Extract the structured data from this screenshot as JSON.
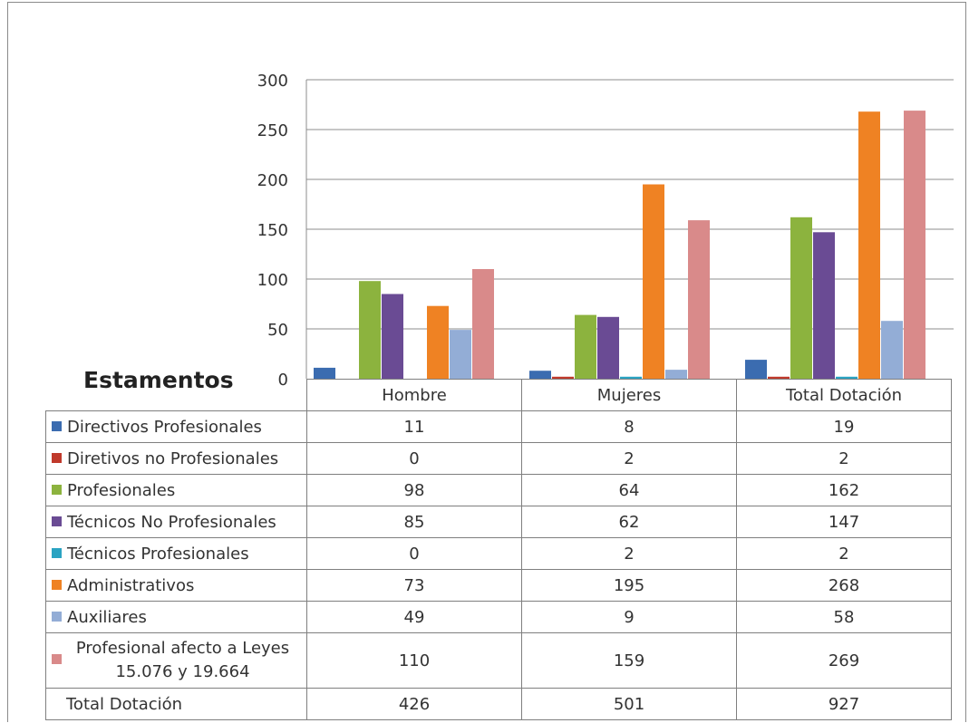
{
  "chart_data": {
    "type": "bar",
    "title": "Estamentos",
    "categories": [
      "Hombre",
      "Mujeres",
      "Total Dotación"
    ],
    "ylim": [
      0,
      300
    ],
    "yticks": [
      0,
      50,
      100,
      150,
      200,
      250,
      300
    ],
    "grid": true,
    "legend": "table",
    "series": [
      {
        "name": "Directivos Profesionales",
        "color": "#3b6cb0",
        "values": [
          11,
          8,
          19
        ]
      },
      {
        "name": "Diretivos no Profesionales",
        "color": "#c0392b",
        "values": [
          0,
          2,
          2
        ]
      },
      {
        "name": "Profesionales",
        "color": "#8cb33e",
        "values": [
          98,
          64,
          162
        ]
      },
      {
        "name": "Técnicos No Profesionales",
        "color": "#6a4b94",
        "values": [
          85,
          62,
          147
        ]
      },
      {
        "name": "Técnicos Profesionales",
        "color": "#2aa3c2",
        "values": [
          0,
          2,
          2
        ]
      },
      {
        "name": "Administrativos",
        "color": "#ef8223",
        "values": [
          73,
          195,
          268
        ]
      },
      {
        "name": "Auxiliares",
        "color": "#93add6",
        "values": [
          49,
          9,
          58
        ]
      },
      {
        "name": "Profesional afecto a Leyes 15.076 y 19.664",
        "color": "#d98a8a",
        "values": [
          110,
          159,
          269
        ]
      }
    ],
    "total": {
      "label": "Total Dotación",
      "values": [
        426,
        501,
        927
      ]
    }
  }
}
